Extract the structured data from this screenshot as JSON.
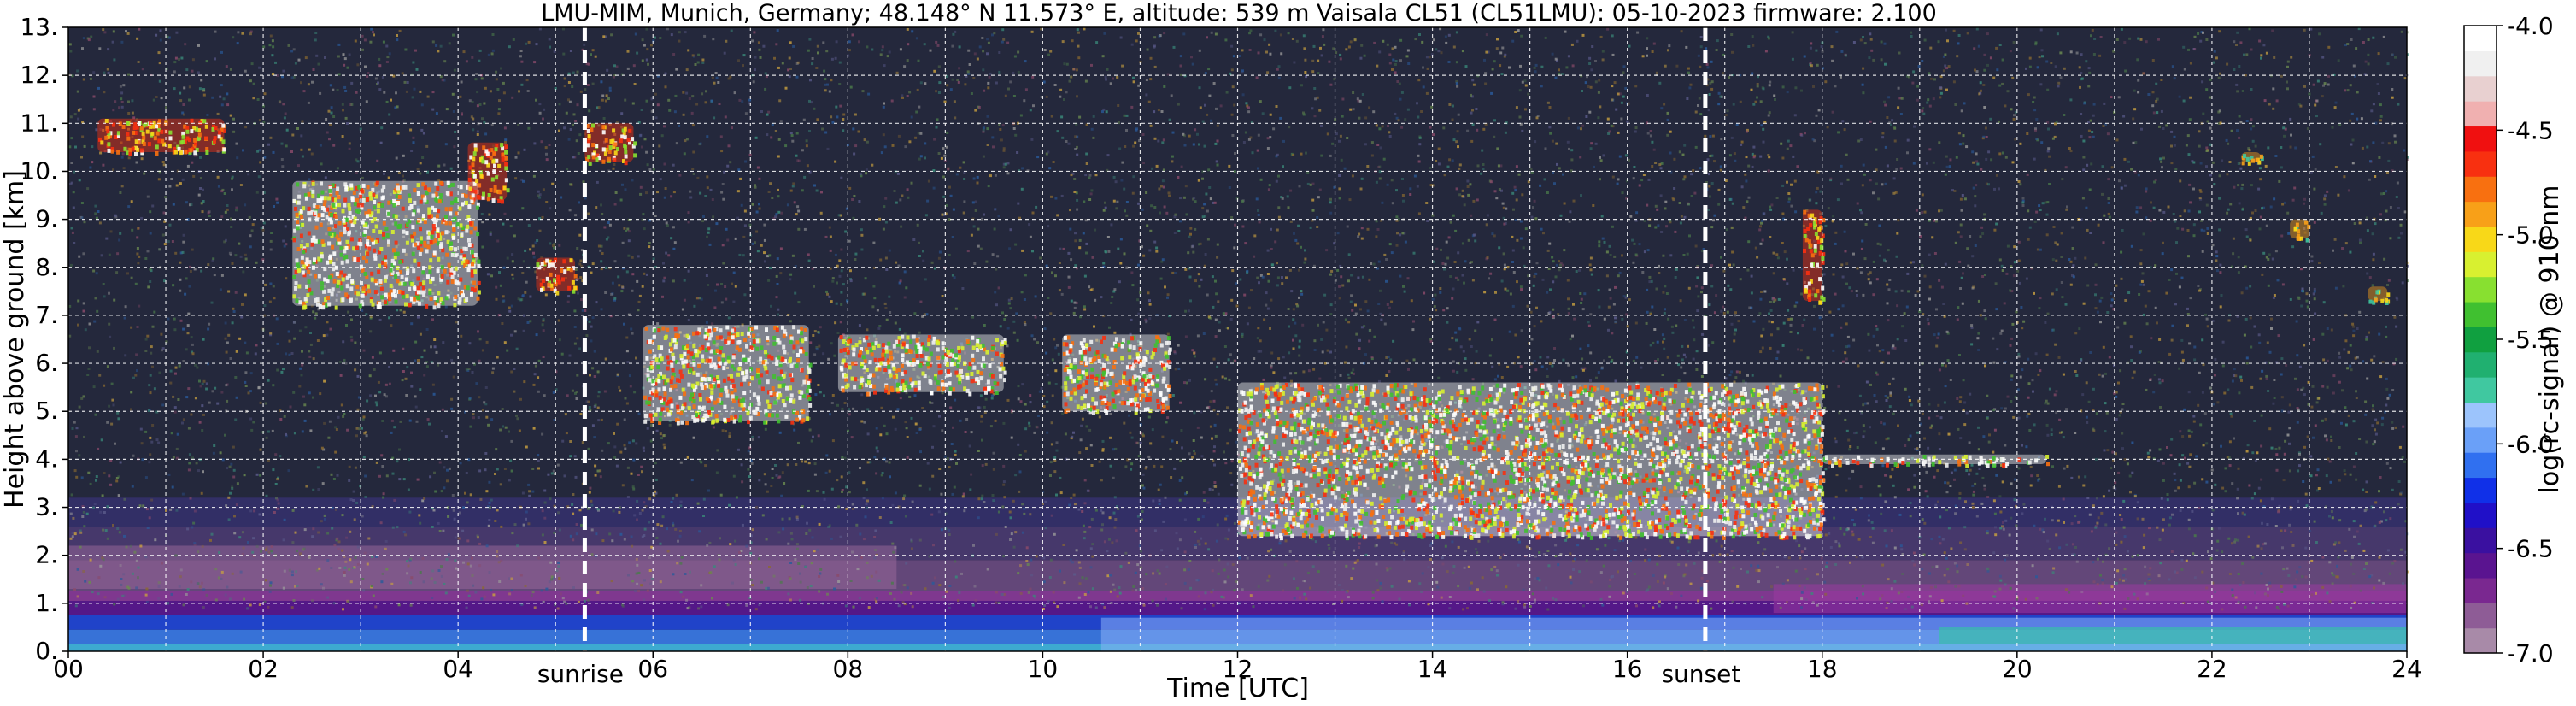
{
  "chart_data": {
    "type": "heatmap",
    "title": "LMU-MIM, Munich, Germany; 48.148° N 11.573° E, altitude: 539 m    Vaisala CL51 (CL51LMU): 05-10-2023    firmware: 2.100",
    "xlabel": "Time [UTC]",
    "ylabel": "Height above ground [km]",
    "xlim": [
      0,
      24
    ],
    "ylim": [
      0,
      13
    ],
    "x_ticks": [
      "00",
      "02",
      "04",
      "06",
      "08",
      "10",
      "12",
      "14",
      "16",
      "18",
      "20",
      "22",
      "24"
    ],
    "y_ticks": [
      "0.",
      "1.",
      "2.",
      "3.",
      "4.",
      "5.",
      "6.",
      "7.",
      "8.",
      "9.",
      "10.",
      "11.",
      "12.",
      "13."
    ],
    "grid": true,
    "colorbar": {
      "label": "log(rc-signal) @ 910 nm",
      "range": [
        -7.0,
        -4.0
      ],
      "ticks": [
        "-4.0",
        "-4.5",
        "-5.0",
        "-5.5",
        "-6.0",
        "-6.5",
        "-7.0"
      ],
      "colors": [
        "#a88aa8",
        "#8e5c96",
        "#7a2890",
        "#5a1490",
        "#3a10a0",
        "#2010c8",
        "#1030e8",
        "#3070f0",
        "#6aa0f8",
        "#9cc4fc",
        "#40c8a0",
        "#20b070",
        "#10a040",
        "#40c030",
        "#88e030",
        "#d8f030",
        "#f8d818",
        "#f8a018",
        "#f87010",
        "#f83010",
        "#f01010",
        "#f0b0b0",
        "#e8d0d0",
        "#f0f0f0",
        "#ffffff"
      ]
    },
    "events": [
      {
        "name": "sunrise",
        "time": 5.3
      },
      {
        "name": "sunset",
        "time": 16.8
      }
    ],
    "cloud_features": [
      {
        "t_start": 0.3,
        "t_end": 1.6,
        "h_base": 10.4,
        "h_top": 11.1,
        "intensity": "moderate"
      },
      {
        "t_start": 2.3,
        "t_end": 4.2,
        "h_base": 7.2,
        "h_top": 9.8,
        "intensity": "strong"
      },
      {
        "t_start": 4.1,
        "t_end": 4.5,
        "h_base": 9.4,
        "h_top": 10.6,
        "intensity": "moderate"
      },
      {
        "t_start": 4.8,
        "t_end": 5.2,
        "h_base": 7.5,
        "h_top": 8.2,
        "intensity": "moderate"
      },
      {
        "t_start": 5.3,
        "t_end": 5.8,
        "h_base": 10.2,
        "h_top": 11.0,
        "intensity": "moderate"
      },
      {
        "t_start": 5.9,
        "t_end": 7.6,
        "h_base": 4.8,
        "h_top": 6.8,
        "intensity": "strong"
      },
      {
        "t_start": 7.9,
        "t_end": 9.6,
        "h_base": 5.4,
        "h_top": 6.6,
        "intensity": "strong"
      },
      {
        "t_start": 10.2,
        "t_end": 11.3,
        "h_base": 5.0,
        "h_top": 6.6,
        "intensity": "strong"
      },
      {
        "t_start": 12.0,
        "t_end": 18.0,
        "h_base": 2.4,
        "h_top": 5.6,
        "intensity": "strong"
      },
      {
        "t_start": 17.8,
        "t_end": 18.0,
        "h_base": 7.3,
        "h_top": 9.2,
        "intensity": "moderate"
      },
      {
        "t_start": 18.0,
        "t_end": 20.3,
        "h_base": 3.9,
        "h_top": 4.1,
        "intensity": "strong"
      },
      {
        "t_start": 22.3,
        "t_end": 22.5,
        "h_base": 10.2,
        "h_top": 10.4,
        "intensity": "weak"
      },
      {
        "t_start": 22.8,
        "t_end": 23.0,
        "h_base": 8.6,
        "h_top": 9.0,
        "intensity": "weak"
      },
      {
        "t_start": 23.6,
        "t_end": 23.8,
        "h_base": 7.3,
        "h_top": 7.6,
        "intensity": "weak"
      }
    ]
  }
}
